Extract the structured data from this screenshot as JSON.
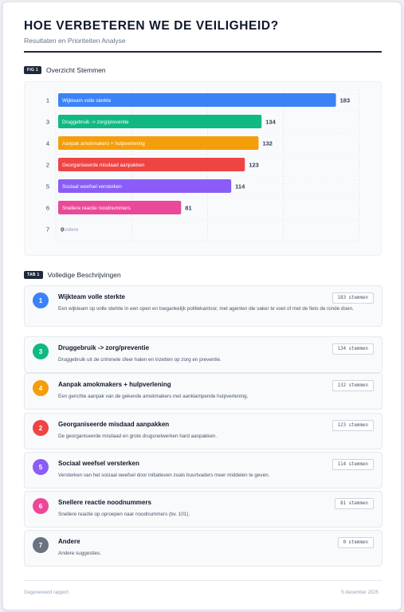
{
  "header": {
    "title": "HOE VERBETEREN WE DE VEILIGHEID?",
    "subtitle": "Resultaten en Prioriteiten Analyse"
  },
  "figure_section": {
    "tag": "FIG 1",
    "title": "Overzicht Stemmen"
  },
  "table_section": {
    "tag": "TAB 1",
    "title": "Volledige Beschrijvingen"
  },
  "chart_data": {
    "type": "bar",
    "orientation": "horizontal",
    "categories": [
      "Wijkteam volle sterkte",
      "Druggebruik -> zorg/preventie",
      "Aanpak amokmakers + hulpverlening",
      "Georganiseerde misdaad aanpakken",
      "Sociaal weefsel versterken",
      "Snellere reactie noodnummers",
      "Andere"
    ],
    "ranks": [
      "1",
      "3",
      "4",
      "2",
      "5",
      "6",
      "7"
    ],
    "values": [
      183,
      134,
      132,
      123,
      114,
      81,
      0
    ],
    "value_labels": [
      "183",
      "134",
      "132",
      "123",
      "114",
      "81",
      "0"
    ],
    "colors": [
      "#3b82f6",
      "#10b981",
      "#f59e0b",
      "#ef4444",
      "#8b5cf6",
      "#ec4899",
      "#6b7280"
    ],
    "xlim": [
      0,
      200
    ],
    "grid": true
  },
  "items": [
    {
      "number": "1",
      "color": "#3b82f6",
      "title": "Wijkteam volle sterkte",
      "votes": "183 stemmen",
      "description": "Een wijkteam op volle sterkte in een open en toegankelijk politiekantoor, met agenten die vaker te voet of met de fiets de ronde doen."
    },
    {
      "number": "3",
      "color": "#10b981",
      "title": "Druggebruik -> zorg/preventie",
      "votes": "134 stemmen",
      "description": "Druggebruik uit de criminele sfeer halen en inzetten op zorg en preventie."
    },
    {
      "number": "4",
      "color": "#f59e0b",
      "title": "Aanpak amokmakers + hulpverlening",
      "votes": "132 stemmen",
      "description": "Een gerichte aanpak van de gekende amokmakers met aanklampende hulpverlening."
    },
    {
      "number": "2",
      "color": "#ef4444",
      "title": "Georganiseerde misdaad aanpakken",
      "votes": "123 stemmen",
      "description": "De georganiseerde misdaad en grote drugsnetwerken hard aanpakken."
    },
    {
      "number": "5",
      "color": "#8b5cf6",
      "title": "Sociaal weefsel versterken",
      "votes": "114 stemmen",
      "description": "Versterken van het sociaal weefsel door initiatieven zoals buurtvaders meer middelen te geven."
    },
    {
      "number": "6",
      "color": "#ec4899",
      "title": "Snellere reactie noodnummers",
      "votes": "81 stemmen",
      "description": "Snellere reactie op oproepen naar noodnummers (bv. 101)."
    },
    {
      "number": "7",
      "color": "#6b7280",
      "title": "Andere",
      "votes": "0 stemmen",
      "description": "Andere suggesties."
    }
  ],
  "footer": {
    "left": "Gegenereerd rapport",
    "right": "5 december 2025"
  }
}
